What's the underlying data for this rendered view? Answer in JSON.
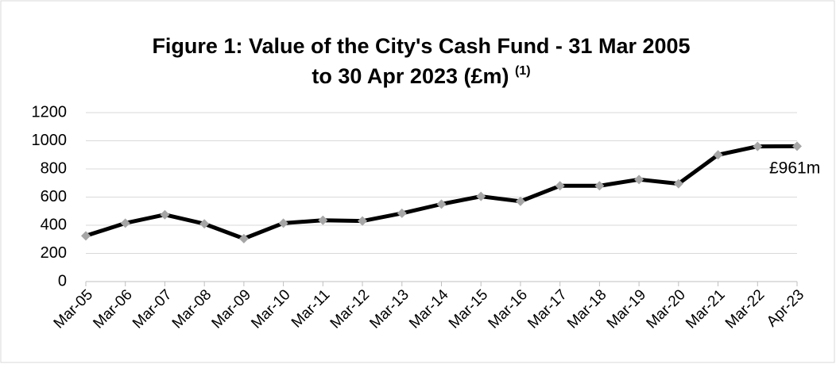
{
  "chart_data": {
    "type": "line",
    "title": [
      "Figure 1: Value of the City's Cash Fund - 31 Mar 2005",
      "to 30 Apr 2023 (£m)"
    ],
    "title_note": "(1)",
    "categories": [
      "Mar-05",
      "Mar-06",
      "Mar-07",
      "Mar-08",
      "Mar-09",
      "Mar-10",
      "Mar-11",
      "Mar-12",
      "Mar-13",
      "Mar-14",
      "Mar-15",
      "Mar-16",
      "Mar-17",
      "Mar-18",
      "Mar-19",
      "Mar-20",
      "Mar-21",
      "Mar-22",
      "Apr-23"
    ],
    "series": [
      {
        "name": "Value",
        "color": "#000000",
        "marker_color": "#a6a6a6",
        "values": [
          325,
          415,
          475,
          410,
          305,
          415,
          435,
          430,
          485,
          550,
          605,
          570,
          680,
          680,
          725,
          695,
          900,
          960,
          961
        ]
      }
    ],
    "annotation": "£961m",
    "ylim": [
      0,
      1200
    ],
    "yticks": [
      0,
      200,
      400,
      600,
      800,
      1000,
      1200
    ],
    "grid": true
  }
}
